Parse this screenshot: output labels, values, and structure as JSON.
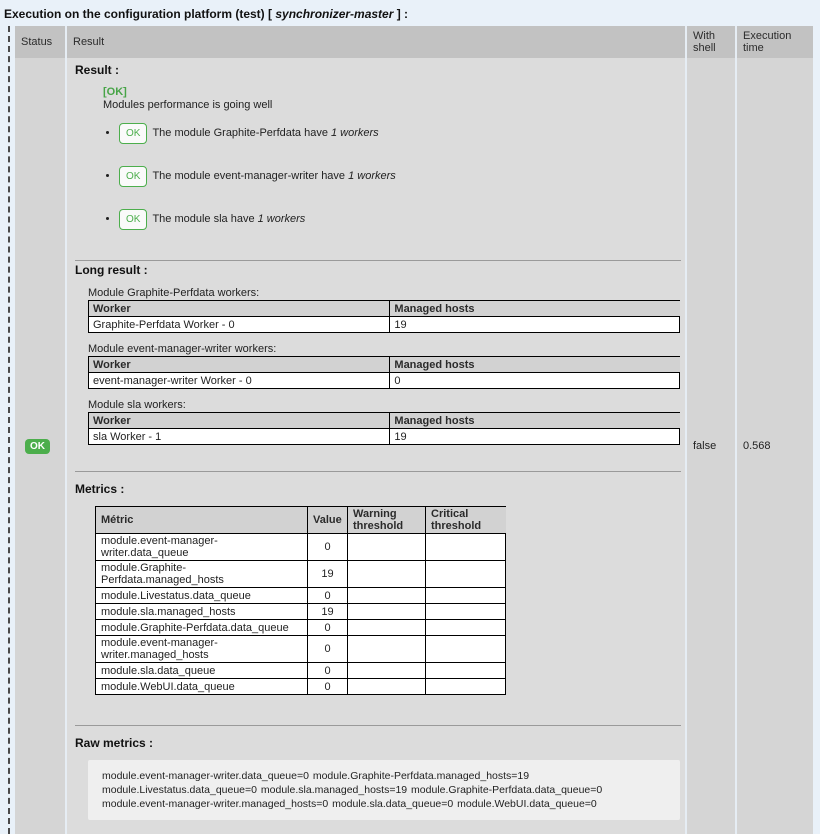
{
  "page": {
    "title_prefix": "Execution on the configuration platform (test) [ ",
    "title_italic": "synchronizer-master",
    "title_suffix": " ] :"
  },
  "colors": {
    "ok_green": "#47a447",
    "badge_green": "#4cae4c",
    "page_background": "#e9f1f9",
    "table_header_grey": "#c2c2c2"
  },
  "table": {
    "headers": {
      "status": "Status",
      "result": "Result",
      "with_shell": "With shell",
      "execution_time": "Execution time"
    }
  },
  "row": {
    "status_badge": "OK",
    "with_shell": "false",
    "execution_time": "0.568"
  },
  "result": {
    "heading": "Result :",
    "ok_text": "[OK]",
    "summary": "Modules performance is going well",
    "items": [
      {
        "badge": "OK",
        "text": "The module Graphite-Perfdata have",
        "italic": "1 workers"
      },
      {
        "badge": "OK",
        "text": "The module event-manager-writer have",
        "italic": "1 workers"
      },
      {
        "badge": "OK",
        "text": "The module sla have",
        "italic": "1 workers"
      }
    ],
    "long_result_heading": "Long result :",
    "worker_tables": [
      {
        "caption": "Module Graphite-Perfdata workers:",
        "headers": [
          "Worker",
          "Managed hosts"
        ],
        "rows": [
          [
            "Graphite-Perfdata Worker - 0",
            "19"
          ]
        ]
      },
      {
        "caption": "Module event-manager-writer workers:",
        "headers": [
          "Worker",
          "Managed hosts"
        ],
        "rows": [
          [
            "event-manager-writer Worker - 0",
            "0"
          ]
        ]
      },
      {
        "caption": "Module sla workers:",
        "headers": [
          "Worker",
          "Managed hosts"
        ],
        "rows": [
          [
            "sla Worker - 1",
            "19"
          ]
        ]
      }
    ],
    "metrics_heading": "Metrics :",
    "metrics_table": {
      "headers": [
        "Métric",
        "Value",
        "Warning threshold",
        "Critical threshold"
      ],
      "rows": [
        [
          "module.event-manager-writer.data_queue",
          "0",
          "",
          ""
        ],
        [
          "module.Graphite-Perfdata.managed_hosts",
          "19",
          "",
          ""
        ],
        [
          "module.Livestatus.data_queue",
          "0",
          "",
          ""
        ],
        [
          "module.sla.managed_hosts",
          "19",
          "",
          ""
        ],
        [
          "module.Graphite-Perfdata.data_queue",
          "0",
          "",
          ""
        ],
        [
          "module.event-manager-writer.managed_hosts",
          "0",
          "",
          ""
        ],
        [
          "module.sla.data_queue",
          "0",
          "",
          ""
        ],
        [
          "module.WebUI.data_queue",
          "0",
          "",
          ""
        ]
      ]
    },
    "raw_heading": "Raw metrics :",
    "raw_text": "module.event-manager-writer.data_queue=0 module.Graphite-Perfdata.managed_hosts=19 module.Livestatus.data_queue=0 module.sla.managed_hosts=19 module.Graphite-Perfdata.data_queue=0 module.event-manager-writer.managed_hosts=0 module.sla.data_queue=0 module.WebUI.data_queue=0"
  }
}
